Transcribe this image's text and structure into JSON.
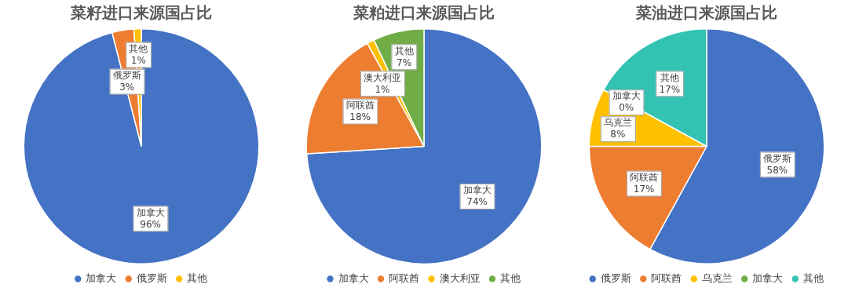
{
  "chart_data": [
    {
      "type": "pie",
      "title": "菜籽进口来源国占比",
      "categories": [
        "加拿大",
        "俄罗斯",
        "其他"
      ],
      "values": [
        96,
        3,
        1
      ],
      "colors": [
        "#4472c4",
        "#ed7d31",
        "#ffc000"
      ],
      "value_labels": [
        "96%",
        "3%",
        "1%"
      ],
      "legend": "bottom"
    },
    {
      "type": "pie",
      "title": "菜粕进口来源国占比",
      "categories": [
        "加拿大",
        "阿联酋",
        "澳大利亚",
        "其他"
      ],
      "values": [
        74,
        18,
        1,
        7
      ],
      "colors": [
        "#4472c4",
        "#ed7d31",
        "#ffc000",
        "#70ad47"
      ],
      "value_labels": [
        "74%",
        "18%",
        "1%",
        "7%"
      ],
      "legend": "bottom"
    },
    {
      "type": "pie",
      "title": "菜油进口来源国占比",
      "categories": [
        "俄罗斯",
        "阿联酋",
        "乌克兰",
        "加拿大",
        "其他"
      ],
      "values": [
        58,
        17,
        8,
        0,
        17
      ],
      "colors": [
        "#4472c4",
        "#ed7d31",
        "#ffc000",
        "#70ad47",
        "#33c3b3"
      ],
      "value_labels": [
        "58%",
        "17%",
        "8%",
        "0%",
        "17%"
      ],
      "legend": "bottom"
    }
  ]
}
